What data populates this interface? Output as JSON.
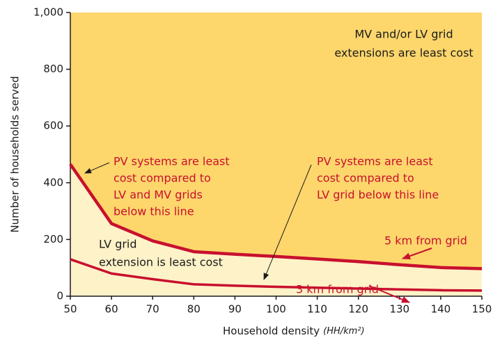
{
  "chart_data": {
    "type": "line",
    "xlabel": "Household density",
    "xlabel_unit": "(HH/km²)",
    "ylabel": "Number of households served",
    "x": [
      50,
      60,
      70,
      80,
      90,
      100,
      110,
      120,
      130,
      140,
      150
    ],
    "xlim": [
      50,
      150
    ],
    "xticks": [
      50,
      60,
      70,
      80,
      90,
      100,
      110,
      120,
      130,
      140,
      150
    ],
    "ylim": [
      0,
      1000
    ],
    "yticks": [
      0,
      200,
      400,
      600,
      800,
      {
        "value": 1000,
        "label": "1,000"
      }
    ],
    "upper_fill": "#fdd66c",
    "lower_fill": "#fef2c8",
    "series": [
      {
        "name": "5 km from grid",
        "color": "#c8102e",
        "values": [
          465,
          256,
          195,
          157,
          148,
          140,
          131,
          122,
          111,
          101,
          97
        ]
      },
      {
        "name": "3 km from grid",
        "color": "#c8102e",
        "values": [
          130,
          80,
          60,
          42,
          37,
          33,
          30,
          27,
          24,
          21,
          20
        ]
      }
    ],
    "annotations": [
      {
        "lines": [
          "MV and/or LV grid",
          "extensions are least cost"
        ],
        "color": "#1a1a1a"
      },
      {
        "lines": [
          "PV systems are least",
          "cost compared to",
          "LV and MV grids",
          "below this line"
        ],
        "color": "#c8102e"
      },
      {
        "lines": [
          "PV systems are least",
          "cost compared to",
          "LV grid below this line"
        ],
        "color": "#c8102e"
      },
      {
        "lines": [
          "LV grid",
          "extension is least cost"
        ],
        "color": "#1a1a1a"
      }
    ]
  }
}
